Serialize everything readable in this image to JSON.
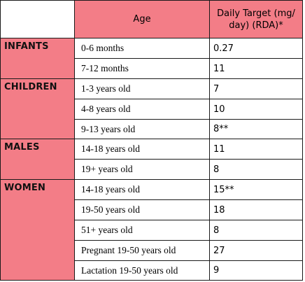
{
  "header": {
    "age_label": "Age",
    "target_label": "Daily Target (mg/ day) (RDA)*"
  },
  "groups": [
    {
      "name": "INFANTS",
      "rows": [
        {
          "age": "0-6 months",
          "value": "0.27"
        },
        {
          "age": "7-12 months",
          "value": "11"
        }
      ]
    },
    {
      "name": "CHILDREN",
      "rows": [
        {
          "age": "1-3 years old",
          "value": "7"
        },
        {
          "age": "4-8 years old",
          "value": "10"
        },
        {
          "age": "9-13 years old",
          "value": "8**"
        }
      ]
    },
    {
      "name": "MALES",
      "rows": [
        {
          "age": "14-18 years old",
          "value": "11"
        },
        {
          "age": "19+ years old",
          "value": "8"
        }
      ]
    },
    {
      "name": "WOMEN",
      "rows": [
        {
          "age": "14-18 years old",
          "value": "15**"
        },
        {
          "age": "19-50 years old",
          "value": "18"
        },
        {
          "age": "51+ years old",
          "value": "8"
        },
        {
          "age": "Pregnant 19-50 years old",
          "value": "27"
        },
        {
          "age": "Lactation 19-50 years old",
          "value": "9"
        }
      ]
    }
  ],
  "colors": {
    "header_bg": "#f37d87",
    "group_bg": "#f37d87",
    "cell_bg": "#ffffff",
    "border": "#1a1a1a"
  }
}
